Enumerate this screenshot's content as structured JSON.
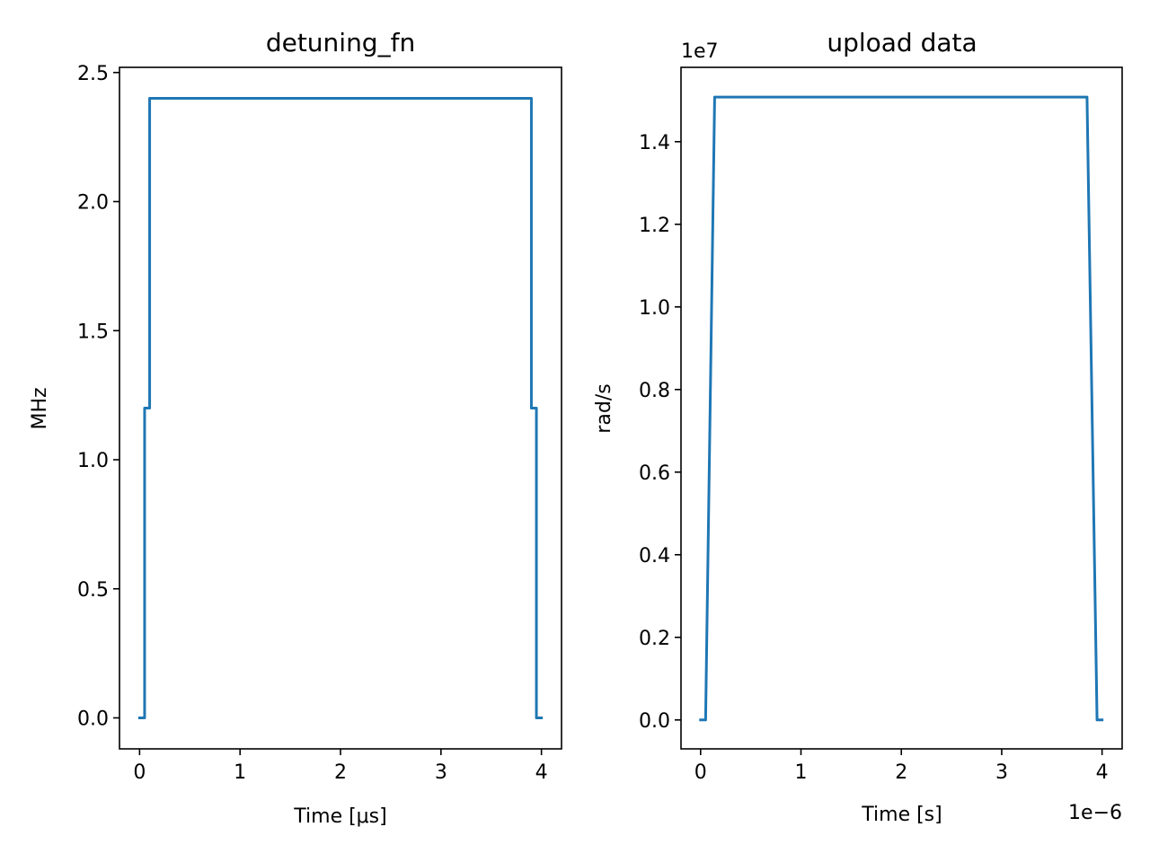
{
  "colors": {
    "series": "#1f77b4",
    "axes": "#000000",
    "background": "#ffffff"
  },
  "chart_data": [
    {
      "type": "line",
      "title": "detuning_fn",
      "xlabel": "Time [μs]",
      "ylabel": "MHz",
      "xlim": [
        -0.2,
        4.2
      ],
      "ylim": [
        -0.12,
        2.52
      ],
      "xticks": [
        0,
        1,
        2,
        3,
        4
      ],
      "xtick_labels": [
        "0",
        "1",
        "2",
        "3",
        "4"
      ],
      "yticks": [
        0.0,
        0.5,
        1.0,
        1.5,
        2.0,
        2.5
      ],
      "ytick_labels": [
        "0.0",
        "0.5",
        "1.0",
        "1.5",
        "2.0",
        "2.5"
      ],
      "x_offset_label": "",
      "y_offset_label": "",
      "grid": false,
      "series": [
        {
          "x": [
            0.0,
            0.05,
            0.05,
            0.1,
            0.1,
            3.9,
            3.9,
            3.95,
            3.95,
            4.0
          ],
          "y": [
            0.0,
            0.0,
            1.2,
            1.2,
            2.4,
            2.4,
            1.2,
            1.2,
            0.0,
            0.0
          ]
        }
      ]
    },
    {
      "type": "line",
      "title": "upload data",
      "xlabel": "Time [s]",
      "ylabel": "rad/s",
      "xlim": [
        -1.95e-07,
        4.2e-06
      ],
      "ylim": [
        -700000,
        15800000
      ],
      "xticks": [
        0,
        1e-06,
        2e-06,
        3e-06,
        4e-06
      ],
      "xtick_labels": [
        "0",
        "1",
        "2",
        "3",
        "4"
      ],
      "yticks": [
        0,
        2000000,
        4000000,
        6000000,
        8000000,
        10000000,
        12000000,
        14000000
      ],
      "ytick_labels": [
        "0.0",
        "0.2",
        "0.4",
        "0.6",
        "0.8",
        "1.0",
        "1.2",
        "1.4"
      ],
      "x_offset_label": "1e−6",
      "y_offset_label": "1e7",
      "grid": false,
      "series": [
        {
          "x": [
            0.0,
            5e-08,
            1.4e-07,
            3.85e-06,
            3.95e-06,
            4e-06
          ],
          "y": [
            0,
            0,
            15080000,
            15080000,
            0,
            0
          ]
        }
      ]
    }
  ]
}
